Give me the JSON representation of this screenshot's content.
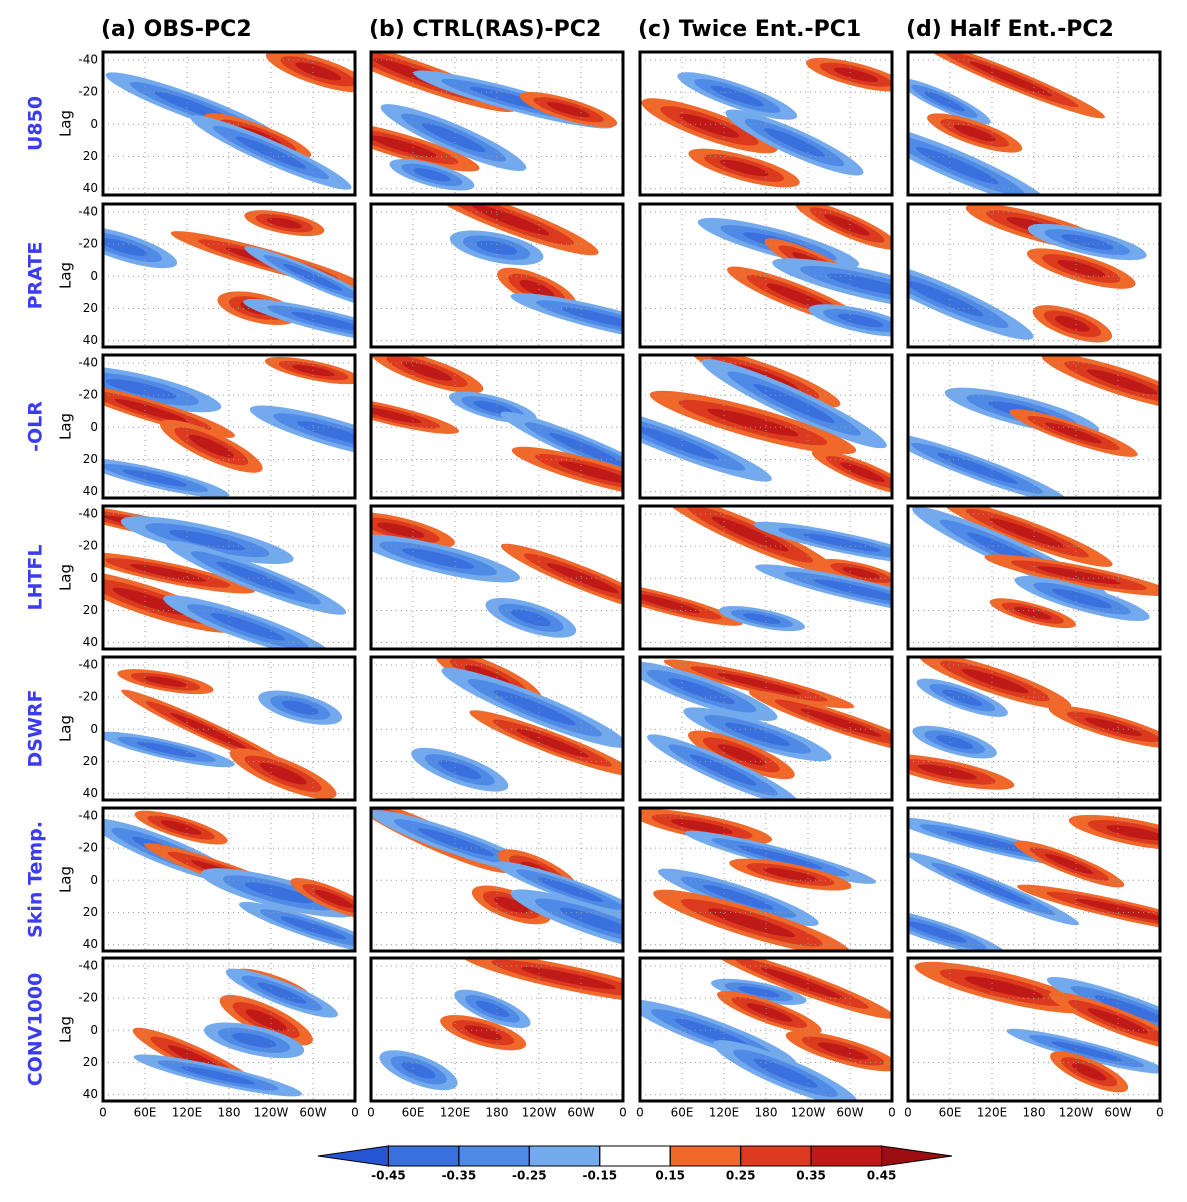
{
  "figure": {
    "columns": [
      "(a) OBS-PC2",
      "(b) CTRL(RAS)-PC2",
      "(c) Twice Ent.-PC1",
      "(d) Half Ent.-PC2"
    ],
    "rows": [
      "U850",
      "PRATE",
      "-OLR",
      "LHTFL",
      "DSWRF",
      "Skin Temp.",
      "CONV1000"
    ],
    "y_label": "Lag",
    "ylim": [
      -45,
      44
    ],
    "yticks": [
      -40,
      -20,
      0,
      20,
      40
    ],
    "xlim": [
      0,
      360
    ],
    "xticks": [
      0,
      {
        "value": 60,
        "label": "60E"
      },
      {
        "value": 120,
        "label": "120E"
      },
      180,
      {
        "value": 240,
        "label": "120W"
      },
      {
        "value": 300,
        "label": "60W"
      },
      {
        "value": 360,
        "label": "0"
      }
    ],
    "colorbar": {
      "levels": [
        -0.45,
        -0.35,
        -0.25,
        -0.15,
        0.15,
        0.25,
        0.35,
        0.45
      ],
      "colors": [
        "#2456d4",
        "#3a70de",
        "#4f8be6",
        "#73aaee",
        "#ffffff",
        "#f0692b",
        "#db3a1f",
        "#bf1a17",
        "#9c0c10"
      ]
    }
  }
}
